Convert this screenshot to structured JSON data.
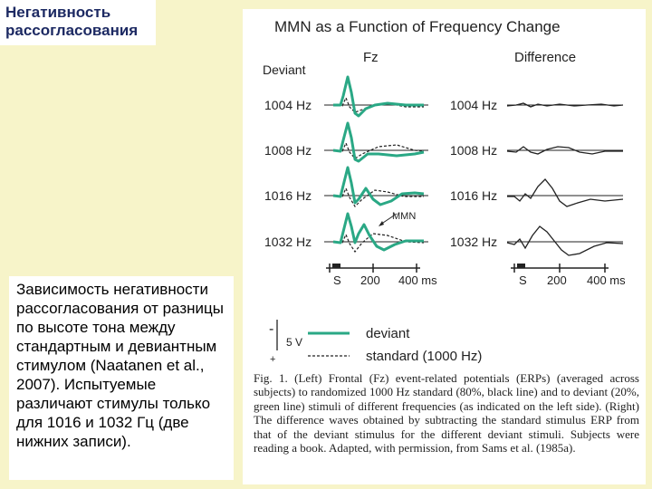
{
  "slide": {
    "title_lines": [
      "Негативность",
      "рассогласования"
    ],
    "caption": "Зависимость негативности рассогласования от разницы по высоте тона между стандартным и девиантным стимулом (Naatanen et al., 2007). Испытуемые различают стимулы только для 1016 и 1032 Гц (две нижних записи)."
  },
  "figure": {
    "title": "MMN as a Function of Frequency Change",
    "col_fz": "Fz",
    "col_diff": "Difference",
    "deviant_header": "Deviant",
    "rows": [
      "1004 Hz",
      "1008 Hz",
      "1016 Hz",
      "1032 Hz"
    ],
    "mmn_label": "MMN",
    "axis": {
      "s": "S",
      "t200": "200",
      "t400": "400 ms"
    },
    "legend": {
      "minus": "-",
      "plus": "+",
      "scale": "5 V",
      "deviant": "deviant",
      "standard": "standard (1000 Hz)"
    },
    "caption": "Fig. 1. (Left) Frontal (Fz) event-related potentials (ERPs) (averaged across subjects) to randomized 1000 Hz standard (80%, black line) and to deviant (20%, green line) stimuli of different frequencies (as indicated on the left side). (Right) The difference waves obtained by subtracting the standard stimulus ERP from that of the deviant stimulus for the different deviant stimuli. Subjects were reading a book. Adapted, with permission, from Sams et al. (1985a).",
    "colors": {
      "deviant": "#2aa885",
      "standard": "#222222"
    }
  }
}
